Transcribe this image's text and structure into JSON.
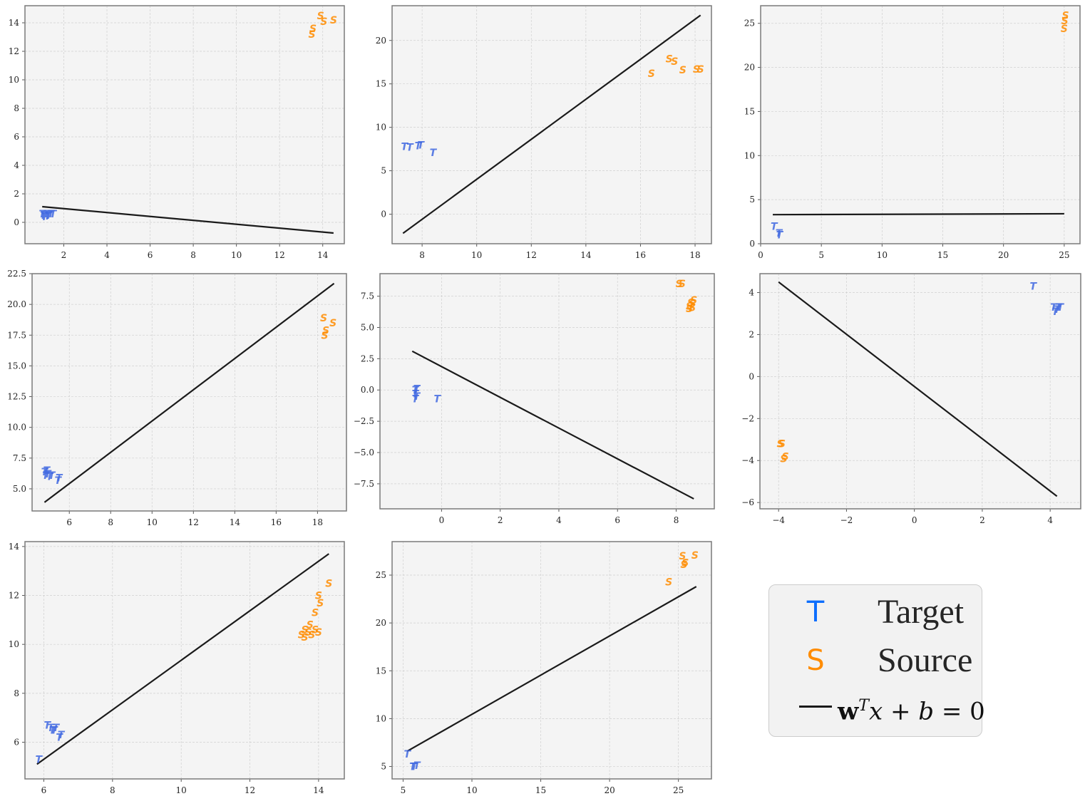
{
  "colors": {
    "target": "#4169e1",
    "source": "#ff8c00",
    "line": "#1a1a1a",
    "panel_bg": "#f4f4f4",
    "grid": "#d0d0d0",
    "frame": "#7a7a7a"
  },
  "legend": {
    "target_marker": "T",
    "target_label": "Target",
    "source_marker": "S",
    "source_label": "Source",
    "boundary_label": "w^T x + b = 0",
    "marker_colors": {
      "target": "#0d6efd",
      "source": "#ff8c00"
    }
  },
  "chart_data": [
    {
      "type": "scatter",
      "xlim": [
        0.2,
        15.0
      ],
      "ylim": [
        -1.5,
        15.2
      ],
      "xticks": [
        2,
        4,
        6,
        8,
        10,
        12,
        14
      ],
      "yticks": [
        0,
        2,
        4,
        6,
        8,
        10,
        12,
        14
      ],
      "grid": true,
      "series": [
        {
          "marker": "T",
          "color": "#4169e1",
          "points": [
            [
              1.0,
              0.6
            ],
            [
              1.1,
              0.4
            ],
            [
              1.2,
              0.6
            ],
            [
              1.3,
              0.5
            ],
            [
              1.4,
              0.6
            ],
            [
              1.5,
              0.6
            ],
            [
              1.05,
              0.5
            ],
            [
              1.25,
              0.45
            ]
          ]
        },
        {
          "marker": "S",
          "color": "#ff8c00",
          "points": [
            [
              13.5,
              13.2
            ],
            [
              13.55,
              13.6
            ],
            [
              13.9,
              14.5
            ],
            [
              14.05,
              14.1
            ],
            [
              14.5,
              14.2
            ]
          ]
        }
      ],
      "line": [
        [
          1.0,
          1.1
        ],
        [
          14.5,
          -0.75
        ]
      ]
    },
    {
      "type": "scatter",
      "xlim": [
        6.9,
        18.6
      ],
      "ylim": [
        -3.4,
        24.0
      ],
      "xticks": [
        8,
        10,
        12,
        14,
        16,
        18
      ],
      "yticks": [
        0,
        5,
        10,
        15,
        20
      ],
      "grid": true,
      "series": [
        {
          "marker": "T",
          "color": "#4169e1",
          "points": [
            [
              7.35,
              7.8
            ],
            [
              7.55,
              7.7
            ],
            [
              7.85,
              7.9
            ],
            [
              7.95,
              7.95
            ],
            [
              8.4,
              7.1
            ]
          ]
        },
        {
          "marker": "S",
          "color": "#ff8c00",
          "points": [
            [
              16.4,
              16.2
            ],
            [
              17.05,
              17.9
            ],
            [
              17.25,
              17.6
            ],
            [
              17.55,
              16.6
            ],
            [
              18.05,
              16.7
            ],
            [
              18.2,
              16.7
            ]
          ]
        }
      ],
      "line": [
        [
          7.3,
          -2.2
        ],
        [
          18.2,
          22.9
        ]
      ]
    },
    {
      "type": "scatter",
      "xlim": [
        0.0,
        26.3
      ],
      "ylim": [
        0.0,
        27.0
      ],
      "xticks": [
        0,
        5,
        10,
        15,
        20,
        25
      ],
      "yticks": [
        0,
        5,
        10,
        15,
        20,
        25
      ],
      "grid": true,
      "series": [
        {
          "marker": "T",
          "color": "#4169e1",
          "points": [
            [
              1.1,
              2.0
            ],
            [
              1.5,
              1.2
            ],
            [
              1.55,
              1.0
            ]
          ]
        },
        {
          "marker": "S",
          "color": "#ff8c00",
          "points": [
            [
              25.0,
              24.4
            ],
            [
              25.05,
              25.3
            ],
            [
              25.1,
              25.9
            ]
          ]
        }
      ],
      "line": [
        [
          1.0,
          3.3
        ],
        [
          25.0,
          3.4
        ]
      ]
    },
    {
      "type": "scatter",
      "xlim": [
        4.2,
        19.4
      ],
      "ylim": [
        3.2,
        22.5
      ],
      "xticks": [
        6,
        8,
        10,
        12,
        14,
        16,
        18
      ],
      "yticks": [
        5.0,
        7.5,
        10.0,
        12.5,
        15.0,
        17.5,
        20.0,
        22.5
      ],
      "grid": true,
      "series": [
        {
          "marker": "T",
          "color": "#4169e1",
          "points": [
            [
              4.8,
              6.4
            ],
            [
              4.85,
              6.1
            ],
            [
              4.95,
              6.2
            ],
            [
              5.05,
              6.0
            ],
            [
              5.15,
              6.1
            ],
            [
              5.45,
              5.7
            ],
            [
              5.5,
              5.9
            ],
            [
              4.9,
              6.5
            ]
          ]
        },
        {
          "marker": "S",
          "color": "#ff8c00",
          "points": [
            [
              18.3,
              18.9
            ],
            [
              18.35,
              17.5
            ],
            [
              18.4,
              17.9
            ],
            [
              18.75,
              18.5
            ]
          ]
        }
      ],
      "line": [
        [
          4.8,
          3.9
        ],
        [
          18.8,
          21.7
        ]
      ]
    },
    {
      "type": "scatter",
      "xlim": [
        -2.1,
        9.3
      ],
      "ylim": [
        -9.5,
        9.3
      ],
      "xticks": [
        0,
        2,
        4,
        6,
        8
      ],
      "yticks": [
        -7.5,
        -5.0,
        -2.5,
        0.0,
        2.5,
        5.0,
        7.5
      ],
      "grid": true,
      "series": [
        {
          "marker": "T",
          "color": "#4169e1",
          "points": [
            [
              -0.9,
              0.0
            ],
            [
              -0.9,
              -0.3
            ],
            [
              -0.85,
              -0.5
            ],
            [
              -0.9,
              -0.7
            ],
            [
              -0.85,
              0.1
            ],
            [
              -0.15,
              -0.7
            ]
          ]
        },
        {
          "marker": "S",
          "color": "#ff8c00",
          "points": [
            [
              8.1,
              8.5
            ],
            [
              8.2,
              8.5
            ],
            [
              8.45,
              6.7
            ],
            [
              8.5,
              7.0
            ],
            [
              8.55,
              6.9
            ],
            [
              8.6,
              7.2
            ],
            [
              8.45,
              6.5
            ],
            [
              8.55,
              6.6
            ]
          ]
        }
      ],
      "line": [
        [
          -1.0,
          3.1
        ],
        [
          8.6,
          -8.7
        ]
      ]
    },
    {
      "type": "scatter",
      "xlim": [
        -4.55,
        4.9
      ],
      "ylim": [
        -6.3,
        4.9
      ],
      "xticks": [
        -4,
        -2,
        0,
        2,
        4
      ],
      "yticks": [
        -6,
        -4,
        -2,
        0,
        2,
        4
      ],
      "grid": true,
      "series": [
        {
          "marker": "T",
          "color": "#4169e1",
          "points": [
            [
              3.5,
              4.3
            ],
            [
              4.1,
              3.3
            ],
            [
              4.2,
              3.2
            ],
            [
              4.3,
              3.3
            ],
            [
              4.15,
              3.1
            ],
            [
              4.25,
              3.3
            ]
          ]
        },
        {
          "marker": "S",
          "color": "#ff8c00",
          "points": [
            [
              -3.9,
              -3.2
            ],
            [
              -3.95,
              -3.2
            ],
            [
              -3.85,
              -3.9
            ],
            [
              -3.8,
              -3.8
            ]
          ]
        }
      ],
      "line": [
        [
          -4.0,
          4.5
        ],
        [
          4.2,
          -5.7
        ]
      ]
    },
    {
      "type": "scatter",
      "xlim": [
        5.45,
        14.75
      ],
      "ylim": [
        4.5,
        14.2
      ],
      "xticks": [
        6,
        8,
        10,
        12,
        14
      ],
      "yticks": [
        6,
        8,
        10,
        12,
        14
      ],
      "grid": true,
      "series": [
        {
          "marker": "T",
          "color": "#4169e1",
          "points": [
            [
              5.85,
              5.3
            ],
            [
              6.1,
              6.7
            ],
            [
              6.2,
              6.6
            ],
            [
              6.25,
              6.5
            ],
            [
              6.35,
              6.6
            ],
            [
              6.45,
              6.2
            ],
            [
              6.5,
              6.3
            ],
            [
              6.3,
              6.5
            ]
          ]
        },
        {
          "marker": "S",
          "color": "#ff8c00",
          "points": [
            [
              13.5,
              10.4
            ],
            [
              13.6,
              10.6
            ],
            [
              13.7,
              10.5
            ],
            [
              13.8,
              10.4
            ],
            [
              13.9,
              10.6
            ],
            [
              13.75,
              10.8
            ],
            [
              14.0,
              10.5
            ],
            [
              13.9,
              11.3
            ],
            [
              14.0,
              12.0
            ],
            [
              14.05,
              11.7
            ],
            [
              14.3,
              12.5
            ],
            [
              13.6,
              10.3
            ]
          ]
        }
      ],
      "line": [
        [
          5.8,
          5.1
        ],
        [
          14.3,
          13.7
        ]
      ]
    },
    {
      "type": "scatter",
      "xlim": [
        4.2,
        27.4
      ],
      "ylim": [
        3.7,
        28.5
      ],
      "xticks": [
        5,
        10,
        15,
        20,
        25
      ],
      "yticks": [
        5,
        10,
        15,
        20,
        25
      ],
      "grid": true,
      "series": [
        {
          "marker": "T",
          "color": "#4169e1",
          "points": [
            [
              5.3,
              6.3
            ],
            [
              5.7,
              5.0
            ],
            [
              6.0,
              5.1
            ],
            [
              5.8,
              5.0
            ]
          ]
        },
        {
          "marker": "S",
          "color": "#ff8c00",
          "points": [
            [
              24.3,
              24.3
            ],
            [
              25.3,
              27.0
            ],
            [
              25.4,
              26.1
            ],
            [
              25.5,
              26.3
            ],
            [
              26.2,
              27.1
            ]
          ]
        }
      ],
      "line": [
        [
          5.3,
          6.6
        ],
        [
          26.3,
          23.8
        ]
      ]
    }
  ]
}
